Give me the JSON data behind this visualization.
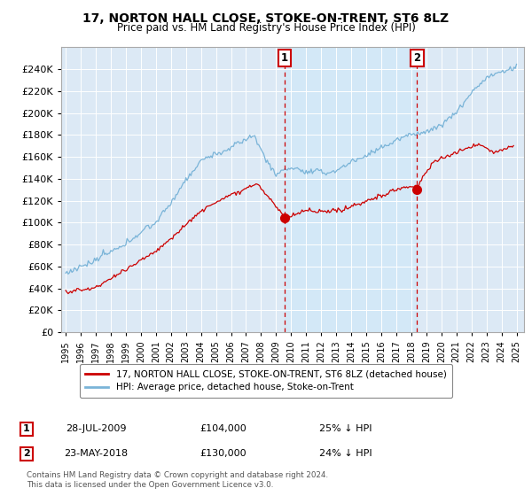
{
  "title": "17, NORTON HALL CLOSE, STOKE-ON-TRENT, ST6 8LZ",
  "subtitle": "Price paid vs. HM Land Registry's House Price Index (HPI)",
  "ylim": [
    0,
    260000
  ],
  "yticks": [
    0,
    20000,
    40000,
    60000,
    80000,
    100000,
    120000,
    140000,
    160000,
    180000,
    200000,
    220000,
    240000
  ],
  "hpi_color": "#7ab4d8",
  "price_color": "#cc0000",
  "shade_color": "#d0e8f8",
  "marker1_date": 2009.57,
  "marker1_price": 104000,
  "marker2_date": 2018.39,
  "marker2_price": 130000,
  "legend_label1": "17, NORTON HALL CLOSE, STOKE-ON-TRENT, ST6 8LZ (detached house)",
  "legend_label2": "HPI: Average price, detached house, Stoke-on-Trent",
  "annotation1_num": "1",
  "annotation1_date": "28-JUL-2009",
  "annotation1_price": "£104,000",
  "annotation1_pct": "25% ↓ HPI",
  "annotation2_num": "2",
  "annotation2_date": "23-MAY-2018",
  "annotation2_price": "£130,000",
  "annotation2_pct": "24% ↓ HPI",
  "footer": "Contains HM Land Registry data © Crown copyright and database right 2024.\nThis data is licensed under the Open Government Licence v3.0.",
  "bg_color": "#dce9f5",
  "fig_bg": "#ffffff"
}
